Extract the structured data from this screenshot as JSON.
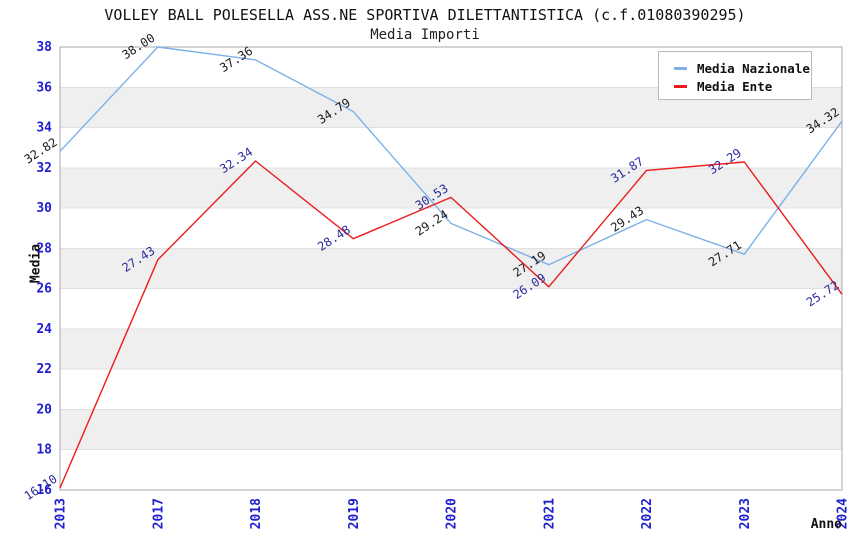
{
  "chart_data": {
    "type": "line",
    "title": "VOLLEY BALL POLESELLA ASS.NE SPORTIVA DILETTANTISTICA (c.f.01080390295)",
    "subtitle": "Media Importi",
    "xlabel": "Anno",
    "ylabel": "Media",
    "x_categories": [
      "2013",
      "2017",
      "2018",
      "2019",
      "2020",
      "2021",
      "2022",
      "2023",
      "2024"
    ],
    "ylim": [
      16,
      38
    ],
    "y_tick_step": 2,
    "grid": "alternating horizontal gray bands every 2 units",
    "legend_position": "top-right",
    "series": [
      {
        "name": "Media Nazionale",
        "color": "#7db1e8",
        "label_color": "#1a1a1a",
        "values": [
          32.82,
          38.0,
          37.36,
          34.79,
          29.24,
          27.19,
          29.43,
          27.71,
          34.32
        ],
        "labels": [
          "32.82",
          "38.00",
          "37.36",
          "34.79",
          "29.24",
          "27.19",
          "29.43",
          "27.71",
          "34.32"
        ]
      },
      {
        "name": "Media Ente",
        "color": "#ec1c1c",
        "label_color": "#2b2b9e",
        "values": [
          16.1,
          27.43,
          32.34,
          28.48,
          30.53,
          26.09,
          31.87,
          32.29,
          25.72
        ],
        "labels": [
          "16.10",
          "27.43",
          "32.34",
          "28.48",
          "30.53",
          "26.09",
          "31.87",
          "32.29",
          "25.72"
        ]
      }
    ],
    "colors": {
      "tick_label": "#2020d0",
      "band": "#efefef",
      "grid_line": "#e0e0e0",
      "plot_border": "#a8a8a8",
      "background": "#ffffff"
    }
  }
}
